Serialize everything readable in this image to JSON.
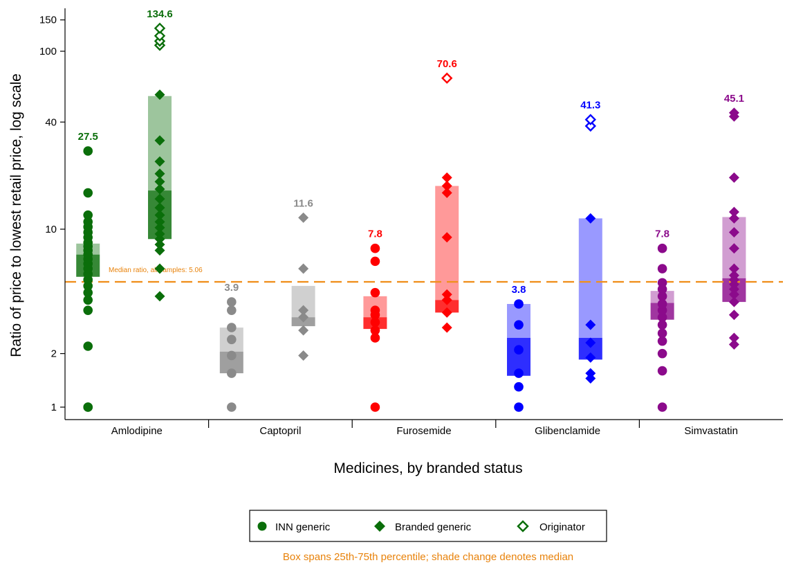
{
  "chart_data": {
    "type": "scatter",
    "ylabel": "Ratio of price to lowest retail price, log scale",
    "xlabel": "Medicines, by branded status",
    "yscale": "log",
    "ylim": [
      0.88,
      190
    ],
    "yticks": [
      1,
      2,
      10,
      40,
      100,
      150
    ],
    "yticklabels": [
      "1",
      "2",
      "10",
      "40",
      "100",
      "150"
    ],
    "reference_line": {
      "value": 5.06,
      "label": "Median ratio, all samples: 5.06",
      "color": "#f0901e"
    },
    "note": "Box spans 25th-75th percentile; shade change denotes median",
    "legend": {
      "position": "bottom",
      "entries": [
        {
          "label": "INN generic",
          "marker": "circle"
        },
        {
          "label": "Branded generic",
          "marker": "diamond"
        },
        {
          "label": "Originator",
          "marker": "hollow-diamond"
        }
      ]
    },
    "categories": [
      {
        "name": "Amlodipine",
        "color": "#0a6e0a",
        "inn": {
          "p25": 5.4,
          "median": 7.2,
          "p75": 8.3,
          "values": [
            1,
            1,
            2.2,
            3.5,
            4.0,
            4.4,
            4.8,
            5.2,
            5.6,
            6.0,
            6.4,
            6.8,
            7.2,
            7.6,
            8.0,
            8.4,
            9.0,
            9.6,
            10.3,
            11.0,
            12.0,
            16.0,
            27.5
          ],
          "top_label": "27.5"
        },
        "branded": {
          "p25": 8.8,
          "median": 16.5,
          "p75": 56.0,
          "values": [
            4.2,
            6.0,
            7.6,
            8.2,
            8.8,
            9.4,
            10.2,
            11.0,
            12.0,
            13.2,
            14.8,
            16.8,
            18.5,
            20.5,
            24.0,
            31.5,
            57.0
          ]
        },
        "originator": {
          "values": [
            108,
            114,
            122,
            134.6
          ],
          "top_label": "134.6"
        }
      },
      {
        "name": "Captopril",
        "color": "#8a8a8a",
        "inn": {
          "p25": 1.55,
          "median": 2.05,
          "p75": 2.8,
          "values": [
            1.0,
            1.55,
            1.95,
            2.4,
            2.8,
            3.5,
            3.9
          ],
          "top_label": "3.9"
        },
        "branded": {
          "p25": 2.85,
          "median": 3.2,
          "p75": 4.8,
          "values": [
            1.95,
            2.7,
            3.2,
            3.5,
            6.0,
            11.6
          ],
          "top_label": "11.6"
        },
        "originator": {
          "values": []
        }
      },
      {
        "name": "Furosemide",
        "color": "#ff0000",
        "inn": {
          "p25": 2.75,
          "median": 3.2,
          "p75": 4.2,
          "values": [
            1.0,
            2.45,
            2.7,
            3.0,
            3.3,
            3.5,
            4.4,
            6.6,
            7.8
          ],
          "top_label": "7.8"
        },
        "branded": {
          "p25": 3.4,
          "median": 4.0,
          "p75": 17.5,
          "values": [
            2.8,
            3.4,
            4.0,
            4.3,
            9.0,
            16.0,
            17.5,
            19.5
          ]
        },
        "originator": {
          "values": [
            70.6
          ],
          "top_label": "70.6"
        }
      },
      {
        "name": "Glibenclamide",
        "color": "#0000ff",
        "inn": {
          "p25": 1.5,
          "median": 2.45,
          "p75": 3.8,
          "values": [
            1.0,
            1.3,
            1.55,
            2.1,
            2.9,
            3.8
          ],
          "top_label": "3.8"
        },
        "branded": {
          "p25": 1.85,
          "median": 2.45,
          "p75": 11.5,
          "values": [
            1.45,
            1.55,
            1.9,
            2.3,
            2.9,
            11.5
          ]
        },
        "originator": {
          "values": [
            38.0,
            41.3
          ],
          "top_label": "41.3"
        }
      },
      {
        "name": "Simvastatin",
        "color": "#8b0a8b",
        "inn": {
          "p25": 3.1,
          "median": 3.85,
          "p75": 4.5,
          "values": [
            1.0,
            1.6,
            2.0,
            2.35,
            2.6,
            2.9,
            3.2,
            3.5,
            3.8,
            4.2,
            4.6,
            5.0,
            6.0,
            7.8
          ],
          "top_label": "7.8"
        },
        "branded": {
          "p25": 3.9,
          "median": 5.3,
          "p75": 11.7,
          "values": [
            2.25,
            2.45,
            3.3,
            3.9,
            4.3,
            4.6,
            4.9,
            5.2,
            5.5,
            6.0,
            7.8,
            9.6,
            11.5,
            12.5,
            19.5,
            43.0,
            45.1
          ],
          "top_label": "45.1"
        },
        "originator": {
          "values": []
        }
      }
    ]
  }
}
